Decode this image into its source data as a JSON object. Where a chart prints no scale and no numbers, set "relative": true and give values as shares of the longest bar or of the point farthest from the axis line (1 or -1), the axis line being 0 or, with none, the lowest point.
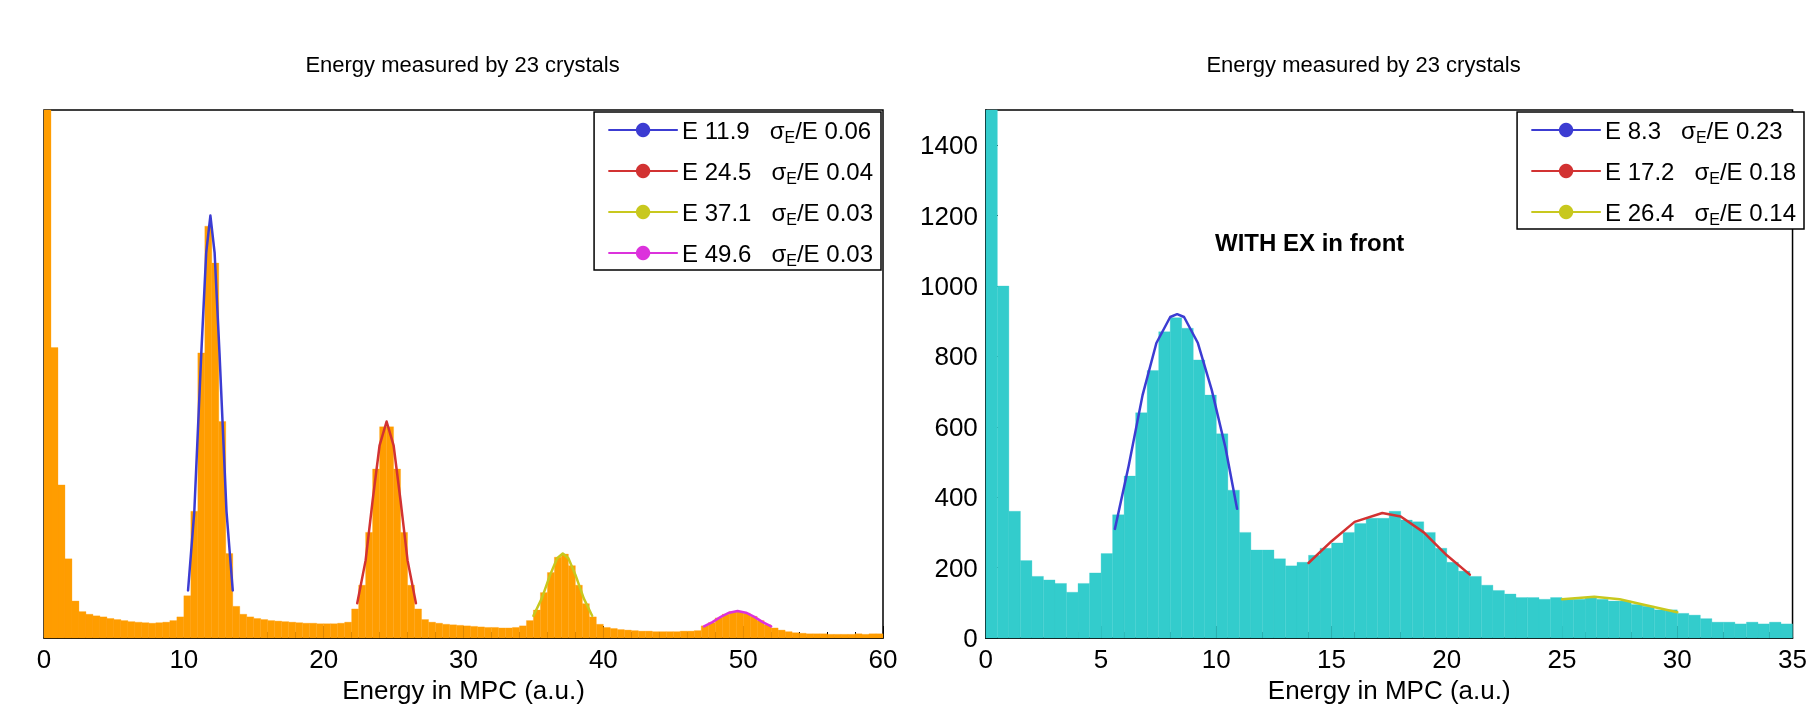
{
  "chart_data": [
    {
      "type": "histogram",
      "title": "Energy measured by 23 crystals",
      "xlabel": "Energy in MPC (a.u.)",
      "relative": true,
      "color": "#ff9d00",
      "legend": "top right",
      "xlim": [
        0,
        60
      ],
      "xticks": [
        0,
        10,
        20,
        30,
        40,
        50,
        60
      ],
      "bins": [
        0,
        0.5,
        1,
        1.5,
        2,
        2.5,
        3,
        3.5,
        4,
        4.5,
        5,
        5.5,
        6,
        6.5,
        7,
        7.5,
        8,
        8.5,
        9,
        9.5,
        10,
        10.5,
        11,
        11.5,
        12,
        12.5,
        13,
        13.5,
        14,
        14.5,
        15,
        15.5,
        16,
        16.5,
        17,
        17.5,
        18,
        18.5,
        19,
        19.5,
        20,
        20.5,
        21,
        21.5,
        22,
        22.5,
        23,
        23.5,
        24,
        24.5,
        25,
        25.5,
        26,
        26.5,
        27,
        27.5,
        28,
        28.5,
        29,
        29.5,
        30,
        30.5,
        31,
        31.5,
        32,
        32.5,
        33,
        33.5,
        34,
        34.5,
        35,
        35.5,
        36,
        36.5,
        37,
        37.5,
        38,
        38.5,
        39,
        39.5,
        40,
        40.5,
        41,
        41.5,
        42,
        42.5,
        43,
        43.5,
        44,
        44.5,
        45,
        45.5,
        46,
        46.5,
        47,
        47.5,
        48,
        48.5,
        49,
        49.5,
        50,
        50.5,
        51,
        51.5,
        52,
        52.5,
        53,
        53.5,
        54,
        54.5,
        55,
        55.5,
        56,
        56.5,
        57,
        57.5,
        58,
        58.5,
        59,
        59.5,
        60
      ],
      "values": [
        1.0,
        0.55,
        0.29,
        0.15,
        0.07,
        0.05,
        0.045,
        0.042,
        0.04,
        0.037,
        0.035,
        0.033,
        0.031,
        0.03,
        0.029,
        0.028,
        0.029,
        0.03,
        0.033,
        0.04,
        0.08,
        0.24,
        0.54,
        0.78,
        0.71,
        0.41,
        0.16,
        0.06,
        0.045,
        0.04,
        0.037,
        0.035,
        0.033,
        0.032,
        0.031,
        0.03,
        0.029,
        0.028,
        0.028,
        0.027,
        0.027,
        0.027,
        0.028,
        0.03,
        0.055,
        0.1,
        0.2,
        0.32,
        0.4,
        0.4,
        0.32,
        0.2,
        0.1,
        0.055,
        0.035,
        0.03,
        0.028,
        0.026,
        0.025,
        0.024,
        0.023,
        0.022,
        0.021,
        0.02,
        0.02,
        0.019,
        0.019,
        0.02,
        0.023,
        0.033,
        0.053,
        0.086,
        0.124,
        0.153,
        0.159,
        0.137,
        0.1,
        0.065,
        0.04,
        0.026,
        0.02,
        0.018,
        0.016,
        0.015,
        0.014,
        0.013,
        0.013,
        0.012,
        0.012,
        0.012,
        0.012,
        0.013,
        0.013,
        0.014,
        0.023,
        0.029,
        0.038,
        0.045,
        0.05,
        0.05,
        0.047,
        0.041,
        0.033,
        0.025,
        0.019,
        0.015,
        0.012,
        0.01,
        0.009,
        0.008,
        0.008,
        0.008,
        0.007,
        0.007,
        0.007,
        0.007,
        0.008,
        0.007,
        0.008,
        0.008
      ],
      "series": [
        {
          "type": "line",
          "name": "E 11.9   σ$_{E}$/E 0.06",
          "color": "#3c3cd2",
          "x": [
            10.3,
            10.75,
            11.25,
            11.6,
            11.9,
            12.2,
            12.55,
            13.05,
            13.5
          ],
          "values": [
            0.09,
            0.24,
            0.54,
            0.73,
            0.8,
            0.73,
            0.54,
            0.24,
            0.09
          ]
        },
        {
          "type": "line",
          "name": "E 24.5   σ$_{E}$/E 0.04",
          "color": "#d23232",
          "x": [
            22.4,
            23,
            23.5,
            24,
            24.5,
            25,
            25.5,
            26,
            26.6
          ],
          "values": [
            0.066,
            0.147,
            0.26,
            0.365,
            0.41,
            0.365,
            0.26,
            0.147,
            0.066
          ]
        },
        {
          "type": "line",
          "name": "E 37.1   σ$_{E}$/E 0.03",
          "color": "#c8c81e",
          "x": [
            35,
            35.6,
            36.2,
            36.7,
            37.1,
            37.5,
            38,
            38.6,
            39.2
          ],
          "values": [
            0.042,
            0.075,
            0.12,
            0.151,
            0.16,
            0.151,
            0.12,
            0.075,
            0.042
          ]
        },
        {
          "type": "line",
          "name": "E 49.6   σ$_{E}$/E 0.03",
          "color": "#dc32dc",
          "x": [
            47.2,
            47.8,
            48.4,
            49,
            49.6,
            50.2,
            50.8,
            51.4,
            52
          ],
          "values": [
            0.022,
            0.03,
            0.04,
            0.048,
            0.051,
            0.048,
            0.04,
            0.03,
            0.022
          ]
        }
      ]
    },
    {
      "type": "histogram",
      "title": "Energy measured by 23 crystals",
      "xlabel": "Energy in MPC (a.u.)",
      "color": "#33cccc",
      "legend": "top right",
      "annotations": [
        "WITH EX in front"
      ],
      "xlim": [
        0,
        35
      ],
      "xticks": [
        0,
        5,
        10,
        15,
        20,
        25,
        30,
        35
      ],
      "ylim": [
        0,
        1500
      ],
      "yticks": [
        0,
        200,
        400,
        600,
        800,
        1000,
        1200,
        1400
      ],
      "bins": [
        0,
        0.5,
        1,
        1.5,
        2,
        2.5,
        3,
        3.5,
        4,
        4.5,
        5,
        5.5,
        6,
        6.5,
        7,
        7.5,
        8,
        8.5,
        9,
        9.5,
        10,
        10.5,
        11,
        11.5,
        12,
        12.5,
        13,
        13.5,
        14,
        14.5,
        15,
        15.5,
        16,
        16.5,
        17,
        17.5,
        18,
        18.5,
        19,
        19.5,
        20,
        20.5,
        21,
        21.5,
        22,
        22.5,
        23,
        23.5,
        24,
        24.5,
        25,
        25.5,
        26,
        26.5,
        27,
        27.5,
        28,
        28.5,
        29,
        29.5,
        30,
        30.5,
        31,
        31.5,
        32,
        32.5,
        33,
        33.5,
        34,
        34.5,
        35
      ],
      "values": [
        1500,
        1000,
        360,
        220,
        175,
        165,
        155,
        130,
        155,
        185,
        240,
        350,
        460,
        640,
        760,
        870,
        910,
        880,
        790,
        690,
        580,
        420,
        300,
        250,
        250,
        225,
        205,
        215,
        235,
        255,
        270,
        300,
        325,
        340,
        340,
        360,
        335,
        330,
        300,
        255,
        215,
        190,
        175,
        150,
        135,
        125,
        115,
        115,
        110,
        115,
        110,
        110,
        115,
        110,
        105,
        105,
        95,
        90,
        80,
        80,
        70,
        65,
        55,
        45,
        45,
        40,
        45,
        40,
        45,
        40
      ],
      "series": [
        {
          "type": "line",
          "name": "E 8.3   σ$_{E}$/E 0.23",
          "color": "#3c3cd2",
          "x": [
            5.6,
            6.2,
            6.8,
            7.4,
            8.0,
            8.3,
            8.6,
            9.2,
            9.8,
            10.4,
            10.9
          ],
          "values": [
            310,
            490,
            690,
            838,
            912,
            920,
            912,
            838,
            705,
            540,
            367
          ]
        },
        {
          "type": "line",
          "name": "E 17.2   σ$_{E}$/E 0.18",
          "color": "#d23232",
          "x": [
            14,
            15,
            16,
            17.2,
            18,
            19,
            20,
            21
          ],
          "values": [
            213,
            275,
            330,
            355,
            345,
            300,
            235,
            180
          ]
        },
        {
          "type": "line",
          "name": "E 26.4   σ$_{E}$/E 0.14",
          "color": "#c8c81e",
          "x": [
            25,
            26.4,
            27.5,
            28.5,
            30
          ],
          "values": [
            110,
            117,
            110,
            95,
            73
          ]
        }
      ]
    }
  ]
}
